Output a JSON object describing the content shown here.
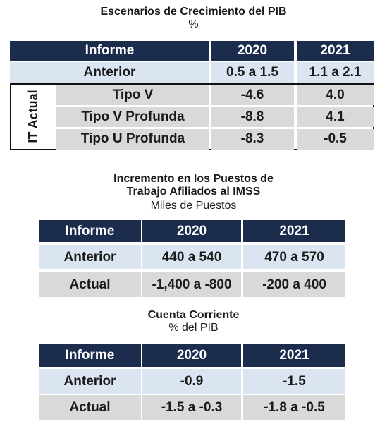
{
  "tables": [
    {
      "title_lines": [
        "Escenarios de Crecimiento del PIB"
      ],
      "subtitle": "%",
      "header": [
        "Informe",
        "2020",
        "2021"
      ],
      "rows": [
        [
          "Anterior",
          "0.5 a 1.5",
          "1.1 a 2.1"
        ]
      ],
      "group_label": "IT Actual",
      "group_rows": [
        [
          "Tipo V",
          "-4.6",
          "4.0"
        ],
        [
          "Tipo V Profunda",
          "-8.8",
          "4.1"
        ],
        [
          "Tipo U Profunda",
          "-8.3",
          "-0.5"
        ]
      ]
    },
    {
      "title_lines": [
        "Incremento en los Puestos de",
        "Trabajo Afiliados al IMSS"
      ],
      "subtitle": "Miles de Puestos",
      "header": [
        "Informe",
        "2020",
        "2021"
      ],
      "rows": [
        [
          "Anterior",
          "440 a 540",
          "470 a 570"
        ],
        [
          "Actual",
          "-1,400 a -800",
          "-200 a 400"
        ]
      ]
    },
    {
      "title_lines": [
        "Cuenta Corriente"
      ],
      "subtitle": "% del PIB",
      "header": [
        "Informe",
        "2020",
        "2021"
      ],
      "rows": [
        [
          "Anterior",
          "-0.9",
          "-1.5"
        ],
        [
          "Actual",
          "-1.5 a -0.3",
          "-1.8 a -0.5"
        ]
      ]
    }
  ]
}
